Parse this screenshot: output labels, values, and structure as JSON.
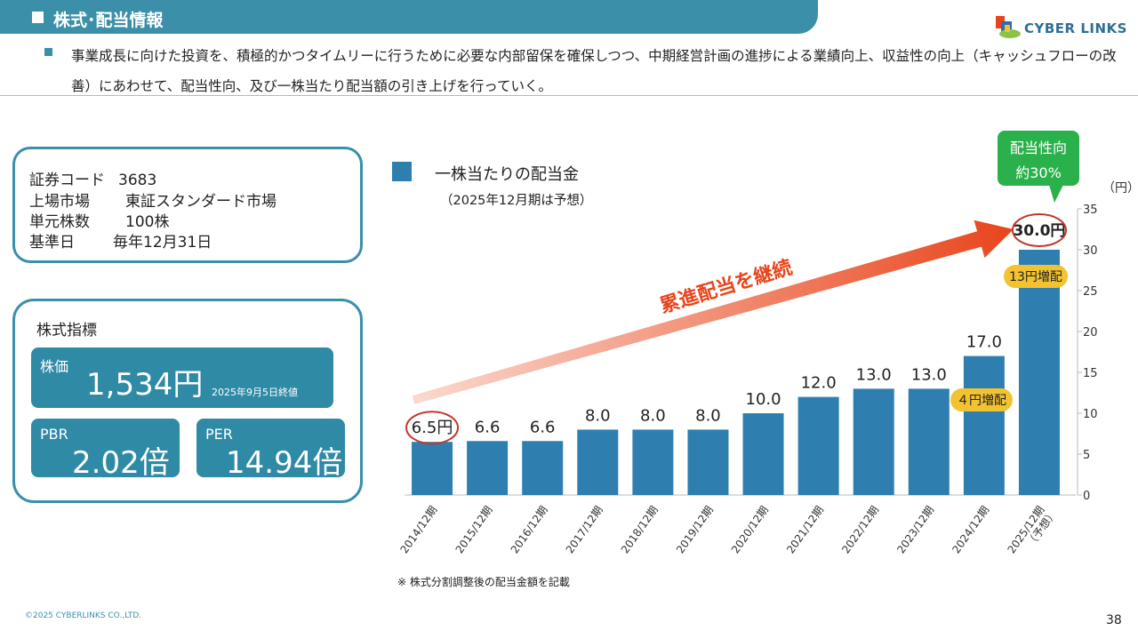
{
  "header": {
    "title": "株式･配当情報"
  },
  "logo": {
    "text": "CYBER LINKS"
  },
  "intro": {
    "text": "事業成長に向けた投資を、積極的かつタイムリーに行うために必要な内部留保を確保しつつ、中期経営計画の進捗による業績向上、収益性の向上（キャッシュフローの改善）にあわせて、配当性向、及び一株当たり配当額の引き上げを行っていく。"
  },
  "stock_info": {
    "rows": [
      {
        "label": "証券コード",
        "value": "3683"
      },
      {
        "label": "上場市場",
        "value": "東証スタンダード市場"
      },
      {
        "label": "単元株数",
        "value": "100株"
      },
      {
        "label": "基準日",
        "value": "毎年12月31日"
      }
    ]
  },
  "indicators": {
    "title": "株式指標",
    "price_label": "株価",
    "price_value": "1,534円",
    "price_note": "2025年9月5日終値",
    "pbr_label": "PBR",
    "pbr_value": "2.02倍",
    "per_label": "PER",
    "per_value": "14.94倍"
  },
  "chart_data": {
    "type": "bar",
    "legend": "一株当たりの配当金",
    "legend_note": "（2025年12月期は予想）",
    "unit": "（円）",
    "categories": [
      "2014/12期",
      "2015/12期",
      "2016/12期",
      "2017/12期",
      "2018/12期",
      "2019/12期",
      "2020/12期",
      "2021/12期",
      "2022/12期",
      "2023/12期",
      "2024/12期",
      "2025/12期"
    ],
    "category_sub": [
      "",
      "",
      "",
      "",
      "",
      "",
      "",
      "",
      "",
      "",
      "",
      "（予想）"
    ],
    "values": [
      6.5,
      6.6,
      6.6,
      8.0,
      8.0,
      8.0,
      10.0,
      12.0,
      13.0,
      13.0,
      17.0,
      30.0
    ],
    "data_labels": [
      "6.5円",
      "6.6",
      "6.6",
      "8.0",
      "8.0",
      "8.0",
      "10.0",
      "12.0",
      "13.0",
      "13.0",
      "17.0",
      "30.0円"
    ],
    "ylim": [
      0,
      35
    ],
    "yticks": [
      0,
      5,
      10,
      15,
      20,
      25,
      30,
      35
    ],
    "bar_color": "#2e7fb0",
    "arrow_label": "累進配当を継続",
    "badge_2024": "４円増配",
    "badge_2025": "13円増配",
    "callout": [
      "配当性向",
      "約30%"
    ],
    "badge_color": "#f2c230",
    "callout_color": "#2bb14b",
    "arrow_color": "#e8451c",
    "circle_color": "#c0392b"
  },
  "footer": {
    "note": "※ 株式分割調整後の配当金額を記載",
    "copyright": "©2025 CYBERLINKS CO.,LTD.",
    "page": "38"
  }
}
